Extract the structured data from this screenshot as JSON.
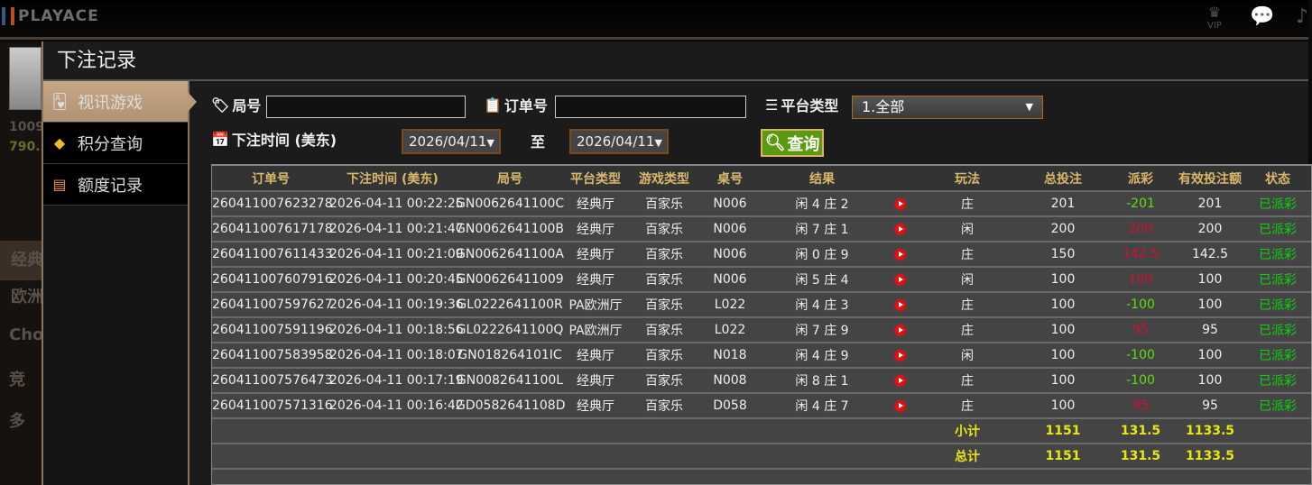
{
  "app": {
    "logo": "PLAYACE",
    "vip_label": "VIP"
  },
  "background": {
    "balance1": "1009",
    "balance2": "790.",
    "items": [
      "经典",
      "欧洲",
      "Cho",
      "竞",
      "多"
    ]
  },
  "modal": {
    "title": "下注记录"
  },
  "sidebar": {
    "items": [
      {
        "label": "视讯游戏",
        "icon": "cards-icon",
        "active": true
      },
      {
        "label": "积分查询",
        "icon": "diamond-icon"
      },
      {
        "label": "额度记录",
        "icon": "document-icon"
      }
    ]
  },
  "filters": {
    "round_label": "局号",
    "round_value": "",
    "order_label": "订单号",
    "order_value": "",
    "platform_label": "平台类型",
    "platform_value": "1.全部",
    "time_label": "下注时间 (美东)",
    "date_from": "2026/04/11",
    "to_label": "至",
    "date_to": "2026/04/11",
    "query_label": "查询"
  },
  "table": {
    "headers": [
      "订单号",
      "下注时间 (美东)",
      "局号",
      "平台类型",
      "游戏类型",
      "桌号",
      "结果",
      "",
      "玩法",
      "总投注",
      "派彩",
      "有效投注额",
      "状态"
    ],
    "rows": [
      [
        "260411007623278",
        "2026-04-11 00:22:25",
        "GN0062641100C",
        "经典厅",
        "百家乐",
        "N006",
        "闲 4 庄 2",
        "庄",
        "201",
        "-201",
        "201",
        "已派彩"
      ],
      [
        "260411007617178",
        "2026-04-11 00:21:47",
        "GN0062641100B",
        "经典厅",
        "百家乐",
        "N006",
        "闲 7 庄 1",
        "闲",
        "200",
        "200",
        "200",
        "已派彩"
      ],
      [
        "260411007611433",
        "2026-04-11 00:21:09",
        "GN0062641100A",
        "经典厅",
        "百家乐",
        "N006",
        "闲 0 庄 9",
        "庄",
        "150",
        "142.5",
        "142.5",
        "已派彩"
      ],
      [
        "260411007607916",
        "2026-04-11 00:20:45",
        "GN00626411009",
        "经典厅",
        "百家乐",
        "N006",
        "闲 5 庄 4",
        "闲",
        "100",
        "100",
        "100",
        "已派彩"
      ],
      [
        "260411007597627",
        "2026-04-11 00:19:36",
        "GL0222641100R",
        "PA欧洲厅",
        "百家乐",
        "L022",
        "闲 4 庄 3",
        "庄",
        "100",
        "-100",
        "100",
        "已派彩"
      ],
      [
        "260411007591196",
        "2026-04-11 00:18:56",
        "GL0222641100Q",
        "PA欧洲厅",
        "百家乐",
        "L022",
        "闲 7 庄 9",
        "庄",
        "100",
        "95",
        "95",
        "已派彩"
      ],
      [
        "260411007583958",
        "2026-04-11 00:18:07",
        "GN018264101IC",
        "经典厅",
        "百家乐",
        "N018",
        "闲 4 庄 9",
        "闲",
        "100",
        "-100",
        "100",
        "已派彩"
      ],
      [
        "260411007576473",
        "2026-04-11 00:17:19",
        "GN0082641100L",
        "经典厅",
        "百家乐",
        "N008",
        "闲 8 庄 1",
        "庄",
        "100",
        "-100",
        "100",
        "已派彩"
      ],
      [
        "260411007571316",
        "2026-04-11 00:16:42",
        "GD0582641108D",
        "经典厅",
        "百家乐",
        "D058",
        "闲 4 庄 7",
        "庄",
        "100",
        "95",
        "95",
        "已派彩"
      ]
    ],
    "subtotal": {
      "label": "小计",
      "total_bet": "1151",
      "payout": "131.5",
      "valid_bet": "1133.5"
    },
    "total": {
      "label": "总计",
      "total_bet": "1151",
      "payout": "131.5",
      "valid_bet": "1133.5"
    }
  },
  "colors": {
    "payout_negative": "#60dd10",
    "payout_positive": "#d01030",
    "status": "#10d010",
    "header_text": "#d8b86a",
    "summary": "#e8e810"
  }
}
